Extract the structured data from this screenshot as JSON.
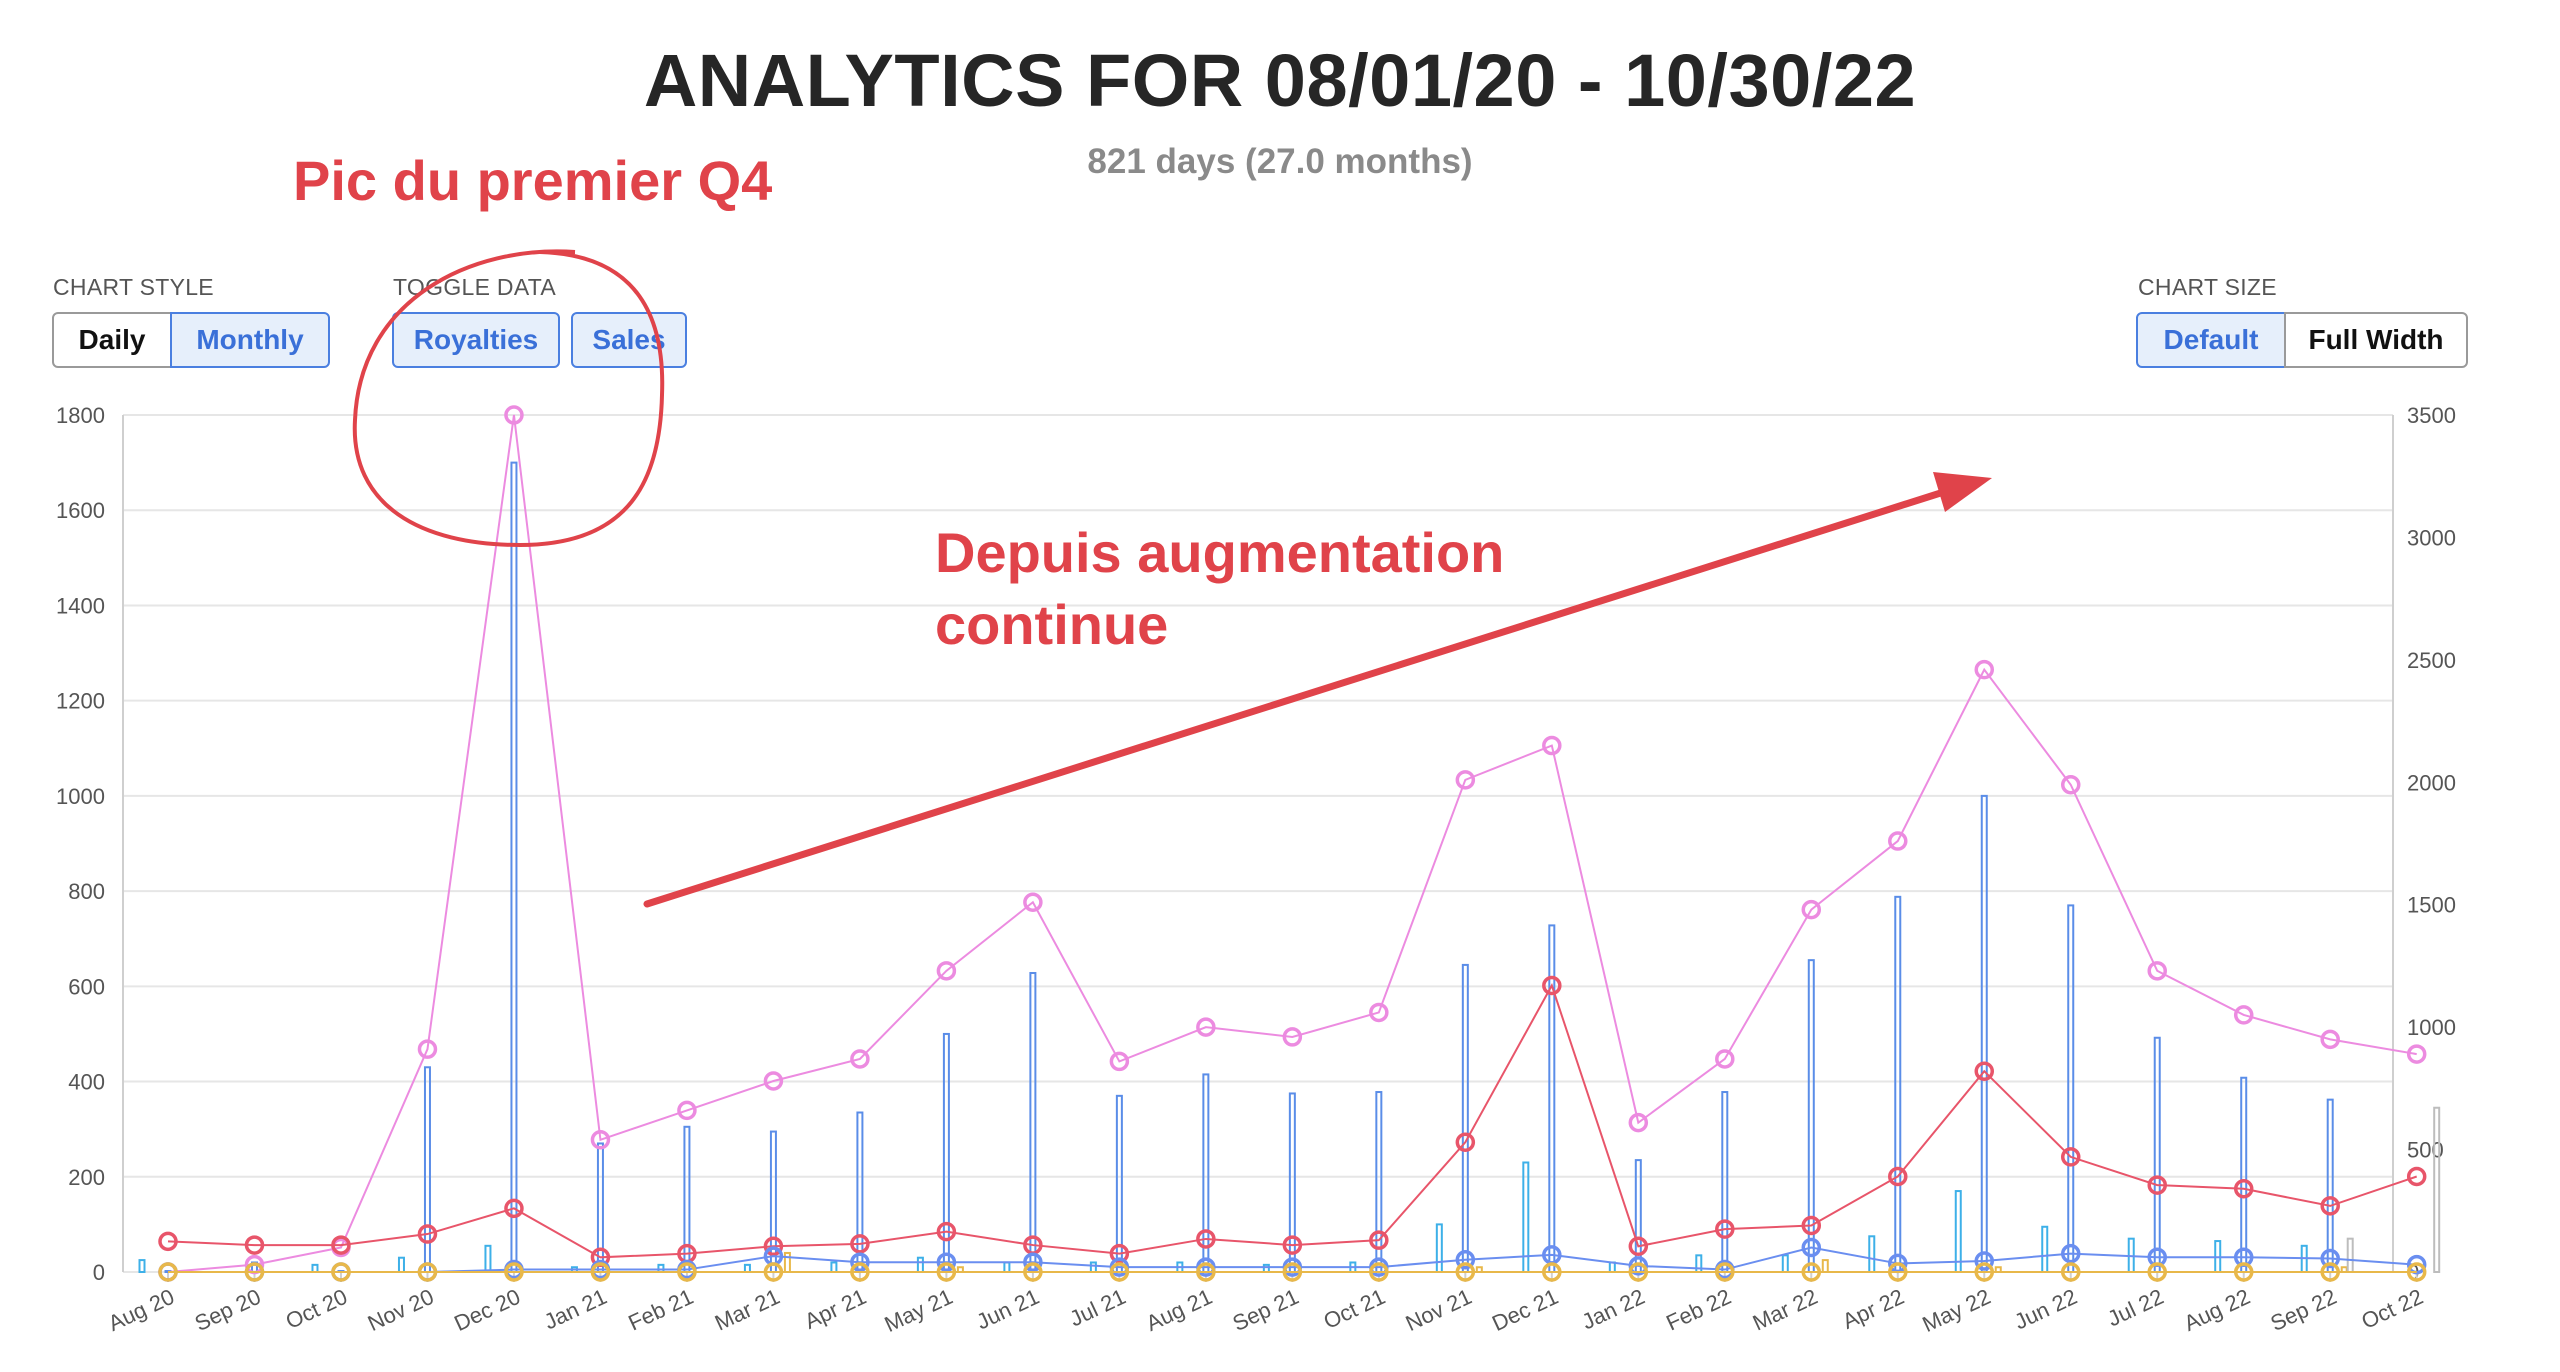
{
  "header": {
    "title": "ANALYTICS FOR 08/01/20 - 10/30/22",
    "subtitle": "821 days (27.0 months)"
  },
  "controls": {
    "chart_style": {
      "label": "CHART STYLE",
      "options": [
        "Daily",
        "Monthly"
      ],
      "selected": "Monthly"
    },
    "toggle_data": {
      "label": "TOGGLE DATA",
      "options": [
        "Royalties",
        "Sales"
      ],
      "active": [
        "Royalties",
        "Sales"
      ]
    },
    "chart_size": {
      "label": "CHART SIZE",
      "options": [
        "Default",
        "Full Width"
      ],
      "selected": "Default"
    }
  },
  "annotations": {
    "peak_note": "Pic du premier Q4",
    "trend_line1": "Depuis augmentation",
    "trend_line2": "continue",
    "color": "#e0434a"
  },
  "chart_data": {
    "type": "bar",
    "categories": [
      "Aug 20",
      "Sep 20",
      "Oct 20",
      "Nov 20",
      "Dec 20",
      "Jan 21",
      "Feb 21",
      "Mar 21",
      "Apr 21",
      "May 21",
      "Jun 21",
      "Jul 21",
      "Aug 21",
      "Sep 21",
      "Oct 21",
      "Nov 21",
      "Dec 21",
      "Jan 22",
      "Feb 22",
      "Mar 22",
      "Apr 22",
      "May 22",
      "Jun 22",
      "Jul 22",
      "Aug 22",
      "Sep 22",
      "Oct 22"
    ],
    "left_axis": {
      "ticks": [
        0,
        200,
        400,
        600,
        800,
        1000,
        1200,
        1400,
        1600,
        1800
      ],
      "ylim": [
        0,
        1800
      ]
    },
    "right_axis": {
      "ticks": [
        0,
        500,
        1000,
        1500,
        2000,
        2500,
        3000,
        3500
      ],
      "ylim": [
        0,
        3500
      ]
    },
    "grid": true,
    "bar_series": [
      {
        "axis": "left",
        "color": "#5a8de8",
        "values": [
          2,
          20,
          2,
          430,
          1700,
          270,
          305,
          295,
          335,
          500,
          628,
          370,
          415,
          375,
          378,
          645,
          728,
          235,
          378,
          655,
          788,
          1000,
          770,
          492,
          408,
          362,
          0
        ]
      },
      {
        "axis": "left",
        "color": "#3db0e8",
        "values": [
          25,
          0,
          15,
          30,
          55,
          10,
          15,
          15,
          20,
          30,
          20,
          20,
          20,
          15,
          20,
          100,
          230,
          20,
          35,
          35,
          75,
          170,
          95,
          70,
          65,
          55,
          0
        ]
      },
      {
        "axis": "left",
        "color": "#e8b84a",
        "values": [
          0,
          0,
          0,
          0,
          0,
          0,
          0,
          40,
          0,
          10,
          0,
          0,
          0,
          0,
          0,
          10,
          0,
          0,
          0,
          25,
          0,
          10,
          0,
          0,
          0,
          10,
          0
        ]
      },
      {
        "axis": "left",
        "color": "#bdbdbd",
        "values": [
          0,
          0,
          0,
          0,
          0,
          0,
          0,
          0,
          0,
          0,
          0,
          0,
          0,
          0,
          0,
          0,
          0,
          0,
          0,
          0,
          0,
          0,
          0,
          0,
          0,
          70,
          345
        ]
      }
    ],
    "line_series": [
      {
        "axis": "right",
        "color": "#ec8be0",
        "values": [
          0,
          30,
          100,
          910,
          3500,
          540,
          660,
          780,
          870,
          1230,
          1510,
          860,
          1000,
          960,
          1060,
          2010,
          2150,
          610,
          870,
          1480,
          1760,
          2460,
          1990,
          1230,
          1050,
          950,
          890
        ]
      },
      {
        "axis": "right",
        "color": "#e8556a",
        "values": [
          125,
          110,
          110,
          155,
          260,
          60,
          75,
          105,
          115,
          165,
          110,
          75,
          135,
          110,
          130,
          530,
          1170,
          105,
          175,
          190,
          390,
          820,
          470,
          355,
          340,
          270,
          390
        ]
      },
      {
        "axis": "right",
        "color": "#6a8ef0",
        "values": [
          0,
          0,
          0,
          0,
          10,
          10,
          10,
          65,
          40,
          40,
          40,
          20,
          20,
          20,
          20,
          50,
          70,
          25,
          10,
          100,
          35,
          45,
          75,
          60,
          60,
          55,
          30
        ]
      },
      {
        "axis": "right",
        "color": "#e8b84a",
        "values": [
          0,
          0,
          0,
          0,
          0,
          0,
          0,
          0,
          0,
          0,
          0,
          0,
          0,
          0,
          0,
          0,
          0,
          0,
          0,
          0,
          0,
          0,
          0,
          0,
          0,
          0,
          0
        ]
      }
    ]
  }
}
